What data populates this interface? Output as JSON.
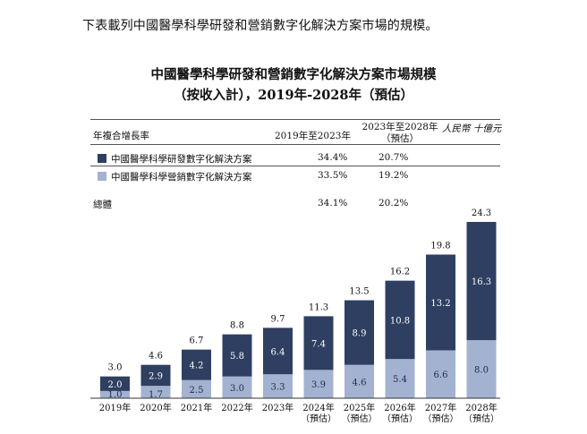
{
  "intro_text": "下表載列中國醫學科學研發和營銷數字化解決方案市場的規模。",
  "title_line1": "中國醫學科學研發和營銷數字化解決方案市場規模",
  "title_line2": "（按收入計），2019年-2028年（預估）",
  "table": {
    "col_label": "年複合增長率",
    "col_hist": "2019年至2023年",
    "col_fore_line1": "2023年至2028年",
    "col_fore_line2": "（預估）",
    "unit": "人民幣 十億元",
    "rows": [
      {
        "name": "中國醫學科學研發數字化解決方案",
        "hist": "34.4%",
        "fore": "20.7%",
        "color": "#2e3f61"
      },
      {
        "name": "中國醫學科學營銷數字化解決方案",
        "hist": "33.5%",
        "fore": "19.2%",
        "color": "#a3b2d1"
      }
    ],
    "total": {
      "name": "總體",
      "hist": "34.1%",
      "fore": "20.2%"
    }
  },
  "chart_data": {
    "type": "bar",
    "stacked": true,
    "title": "中國醫學科學研發和營銷數字化解決方案市場規模",
    "ylabel": "人民幣 十億元",
    "categories": [
      "2019年",
      "2020年",
      "2021年",
      "2022年",
      "2023年",
      "2024年",
      "2025年",
      "2026年",
      "2027年",
      "2028年"
    ],
    "category_sublabels": [
      "",
      "",
      "",
      "",
      "",
      "（預估）",
      "（預估）",
      "（預估）",
      "（預估）",
      "（預估）"
    ],
    "series": [
      {
        "name": "中國醫學科學營銷數字化解決方案",
        "values": [
          1.0,
          1.7,
          2.5,
          3.0,
          3.3,
          3.9,
          4.6,
          5.4,
          6.6,
          8.0
        ],
        "color": "#a3b2d1"
      },
      {
        "name": "中國醫學科學研發數字化解決方案",
        "values": [
          2.0,
          2.9,
          4.2,
          5.8,
          6.4,
          7.4,
          8.9,
          10.8,
          13.2,
          16.3
        ],
        "color": "#2e3f61"
      }
    ],
    "totals": [
      3.0,
      4.6,
      6.7,
      8.8,
      9.7,
      11.3,
      13.5,
      16.2,
      19.8,
      24.3
    ],
    "ylim": [
      0,
      24.3
    ]
  }
}
